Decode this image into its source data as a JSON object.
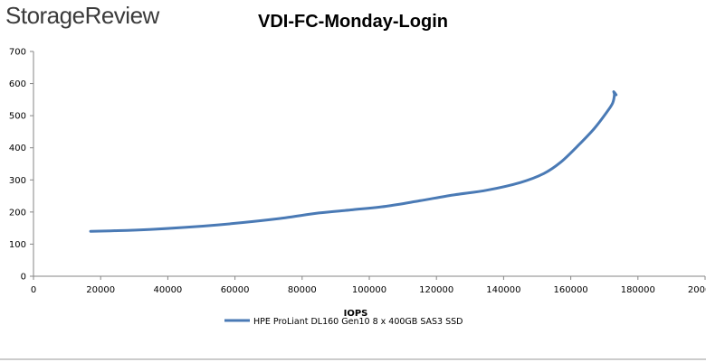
{
  "logo": "StorageReview",
  "chart_data": {
    "type": "line",
    "title": "VDI-FC-Monday-Login",
    "xlabel": "IOPS",
    "ylabel": "",
    "xlim": [
      0,
      200000
    ],
    "ylim": [
      0,
      700
    ],
    "x_ticks": [
      "0",
      "20000",
      "40000",
      "60000",
      "80000",
      "100000",
      "120000",
      "140000",
      "160000",
      "180000",
      "200000"
    ],
    "y_ticks": [
      "0",
      "100",
      "200",
      "300",
      "400",
      "500",
      "600",
      "700"
    ],
    "grid": false,
    "legend_position": "bottom",
    "series": [
      {
        "name": "HPE ProLiant DL160 Gen10 8 x 400GB SAS3 SSD",
        "color": "#4a7ab5",
        "x": [
          17000,
          25000,
          35000,
          45000,
          55000,
          65000,
          75000,
          85000,
          95000,
          105000,
          115000,
          125000,
          135000,
          145000,
          152000,
          157000,
          162000,
          167000,
          171000,
          172500,
          173000,
          172800,
          173500
        ],
        "y": [
          140,
          142,
          146,
          152,
          160,
          170,
          182,
          197,
          207,
          218,
          235,
          253,
          268,
          292,
          320,
          355,
          405,
          460,
          515,
          540,
          565,
          575,
          565
        ]
      }
    ]
  }
}
